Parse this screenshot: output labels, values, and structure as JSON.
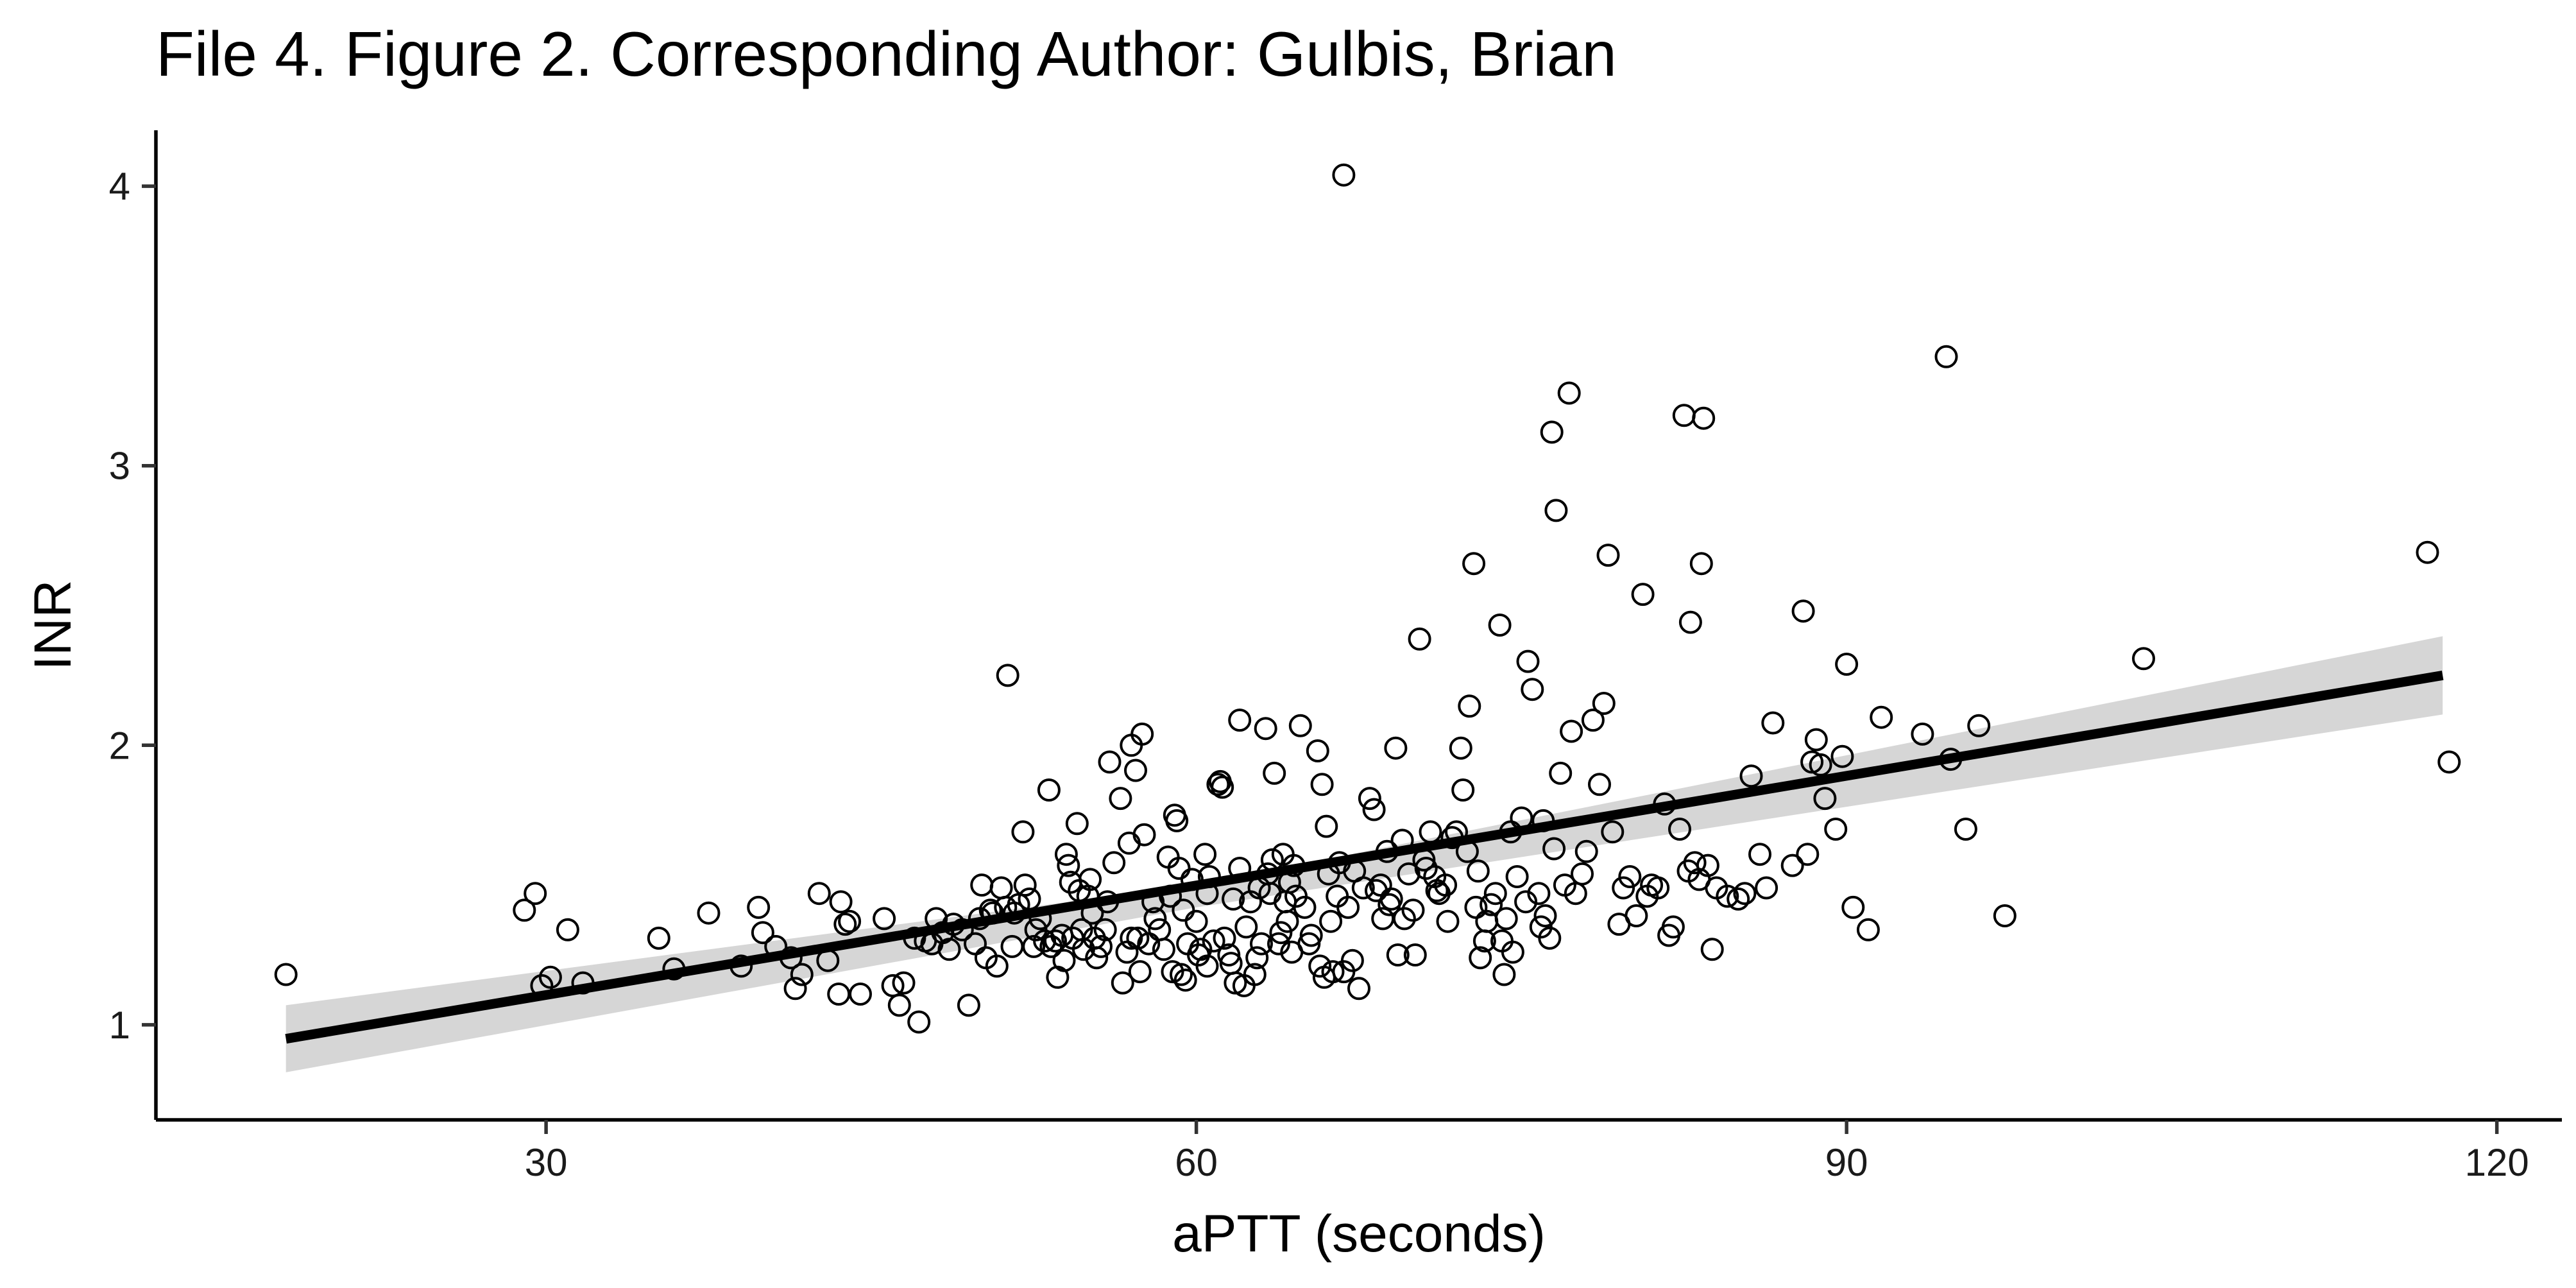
{
  "chart_data": {
    "type": "scatter",
    "title": "File 4. Figure 2. Corresponding Author: Gulbis, Brian",
    "xlabel": "aPTT (seconds)",
    "ylabel": "INR",
    "xlim": [
      12,
      123
    ],
    "ylim": [
      0.66,
      4.2
    ],
    "xticks": [
      30,
      60,
      90,
      120
    ],
    "yticks": [
      1,
      2,
      3,
      4
    ],
    "grid": false,
    "legend": "none",
    "marker": "open-circle",
    "fit": {
      "type": "linear",
      "x_range": [
        18,
        117.5
      ],
      "line": [
        [
          18,
          0.95
        ],
        [
          117.5,
          2.25
        ]
      ],
      "ci_lower": [
        [
          18,
          0.83
        ],
        [
          60,
          1.42
        ],
        [
          117.5,
          2.11
        ]
      ],
      "ci_upper": [
        [
          18,
          1.07
        ],
        [
          60,
          1.5
        ],
        [
          117.5,
          2.39
        ]
      ]
    },
    "colors": {
      "points": "#000000",
      "fit_line": "#000000",
      "ci_band": "#d6d6d6"
    },
    "points": [
      [
        18,
        1.18
      ],
      [
        29,
        1.41
      ],
      [
        29.5,
        1.47
      ],
      [
        29.8,
        1.14
      ],
      [
        30.2,
        1.17
      ],
      [
        31,
        1.34
      ],
      [
        31.7,
        1.15
      ],
      [
        35.2,
        1.31
      ],
      [
        35.9,
        1.2
      ],
      [
        37.5,
        1.4
      ],
      [
        39,
        1.21
      ],
      [
        39.8,
        1.42
      ],
      [
        40,
        1.33
      ],
      [
        40.6,
        1.28
      ],
      [
        41.3,
        1.24
      ],
      [
        41.5,
        1.13
      ],
      [
        41.8,
        1.18
      ],
      [
        42.6,
        1.47
      ],
      [
        43,
        1.23
      ],
      [
        43.5,
        1.11
      ],
      [
        43.6,
        1.44
      ],
      [
        43.8,
        1.36
      ],
      [
        44,
        1.37
      ],
      [
        44.5,
        1.11
      ],
      [
        45.6,
        1.38
      ],
      [
        46,
        1.14
      ],
      [
        46.3,
        1.07
      ],
      [
        46.5,
        1.15
      ],
      [
        47,
        1.31
      ],
      [
        47.2,
        1.01
      ],
      [
        47.5,
        1.3
      ],
      [
        47.8,
        1.29
      ],
      [
        48,
        1.38
      ],
      [
        48.3,
        1.33
      ],
      [
        48.6,
        1.27
      ],
      [
        48.8,
        1.36
      ],
      [
        49.2,
        1.34
      ],
      [
        49.5,
        1.07
      ],
      [
        49.8,
        1.29
      ],
      [
        50,
        1.38
      ],
      [
        50.1,
        1.5
      ],
      [
        50.3,
        1.24
      ],
      [
        50.6,
        1.4
      ],
      [
        50.8,
        1.21
      ],
      [
        51,
        1.49
      ],
      [
        51.2,
        1.42
      ],
      [
        51.3,
        2.25
      ],
      [
        51.5,
        1.28
      ],
      [
        51.6,
        1.4
      ],
      [
        51.8,
        1.43
      ],
      [
        52,
        1.69
      ],
      [
        52.1,
        1.5
      ],
      [
        52.3,
        1.45
      ],
      [
        52.5,
        1.28
      ],
      [
        52.8,
        1.38
      ],
      [
        53,
        1.3
      ],
      [
        53.2,
        1.84
      ],
      [
        53.3,
        1.28
      ],
      [
        53.5,
        1.3
      ],
      [
        53.6,
        1.17
      ],
      [
        53.8,
        1.32
      ],
      [
        54,
        1.61
      ],
      [
        54.1,
        1.57
      ],
      [
        54.2,
        1.51
      ],
      [
        54.3,
        1.31
      ],
      [
        54.5,
        1.72
      ],
      [
        54.6,
        1.48
      ],
      [
        54.8,
        1.27
      ],
      [
        55,
        1.46
      ],
      [
        55.1,
        1.52
      ],
      [
        55.2,
        1.4
      ],
      [
        55.4,
        1.24
      ],
      [
        55.6,
        1.28
      ],
      [
        55.8,
        1.34
      ],
      [
        56,
        1.94
      ],
      [
        56.2,
        1.58
      ],
      [
        56.5,
        1.81
      ],
      [
        56.6,
        1.15
      ],
      [
        56.8,
        1.26
      ],
      [
        57,
        2.0
      ],
      [
        57,
        1.31
      ],
      [
        57.2,
        1.91
      ],
      [
        57.3,
        1.31
      ],
      [
        57.5,
        2.04
      ],
      [
        57.6,
        1.68
      ],
      [
        57.8,
        1.29
      ],
      [
        58,
        1.44
      ],
      [
        58.1,
        1.38
      ],
      [
        58.3,
        1.34
      ],
      [
        58.5,
        1.27
      ],
      [
        58.8,
        1.46
      ],
      [
        59,
        1.75
      ],
      [
        59.1,
        1.73
      ],
      [
        59.2,
        1.56
      ],
      [
        59.3,
        1.18
      ],
      [
        59.5,
        1.16
      ],
      [
        59.6,
        1.29
      ],
      [
        59.8,
        1.52
      ],
      [
        60,
        1.37
      ],
      [
        60.1,
        1.25
      ],
      [
        60.2,
        1.27
      ],
      [
        60.4,
        1.61
      ],
      [
        60.5,
        1.47
      ],
      [
        60.6,
        1.53
      ],
      [
        60.8,
        1.3
      ],
      [
        61,
        1.86
      ],
      [
        61.2,
        1.85
      ],
      [
        61.3,
        1.31
      ],
      [
        61.5,
        1.25
      ],
      [
        61.6,
        1.22
      ],
      [
        61.8,
        1.15
      ],
      [
        62,
        2.09
      ],
      [
        62,
        1.56
      ],
      [
        62.2,
        1.14
      ],
      [
        62.3,
        1.35
      ],
      [
        62.5,
        1.44
      ],
      [
        62.7,
        1.18
      ],
      [
        62.8,
        1.24
      ],
      [
        63,
        1.29
      ],
      [
        63.2,
        2.06
      ],
      [
        63.3,
        1.54
      ],
      [
        63.4,
        1.47
      ],
      [
        63.5,
        1.59
      ],
      [
        63.6,
        1.9
      ],
      [
        63.8,
        1.29
      ],
      [
        64,
        1.61
      ],
      [
        64.1,
        1.44
      ],
      [
        64.2,
        1.37
      ],
      [
        64.4,
        1.26
      ],
      [
        64.5,
        1.57
      ],
      [
        64.6,
        1.46
      ],
      [
        64.8,
        2.07
      ],
      [
        65,
        1.42
      ],
      [
        65.2,
        1.29
      ],
      [
        65.3,
        1.32
      ],
      [
        65.6,
        1.98
      ],
      [
        65.7,
        1.21
      ],
      [
        65.8,
        1.86
      ],
      [
        66,
        1.71
      ],
      [
        66.2,
        1.37
      ],
      [
        66.3,
        1.19
      ],
      [
        66.5,
        1.46
      ],
      [
        66.6,
        1.58
      ],
      [
        66.8,
        1.19
      ],
      [
        67,
        1.42
      ],
      [
        67.2,
        1.23
      ],
      [
        67.5,
        1.13
      ],
      [
        67.7,
        1.49
      ],
      [
        68,
        1.81
      ],
      [
        68.2,
        1.77
      ],
      [
        68.3,
        1.48
      ],
      [
        68.5,
        1.5
      ],
      [
        68.6,
        1.38
      ],
      [
        68.8,
        1.62
      ],
      [
        69,
        1.45
      ],
      [
        69.2,
        1.99
      ],
      [
        69.3,
        1.25
      ],
      [
        69.6,
        1.38
      ],
      [
        69.8,
        1.54
      ],
      [
        70,
        1.41
      ],
      [
        70.1,
        1.25
      ],
      [
        70.3,
        2.38
      ],
      [
        70.5,
        1.59
      ],
      [
        70.8,
        1.69
      ],
      [
        71,
        1.53
      ],
      [
        71.2,
        1.47
      ],
      [
        71.5,
        1.5
      ],
      [
        71.8,
        1.67
      ],
      [
        72,
        1.69
      ],
      [
        72.2,
        1.99
      ],
      [
        72.3,
        1.84
      ],
      [
        72.5,
        1.62
      ],
      [
        72.6,
        2.14
      ],
      [
        72.8,
        2.65
      ],
      [
        73,
        1.55
      ],
      [
        73.1,
        1.24
      ],
      [
        73.3,
        1.3
      ],
      [
        73.6,
        1.43
      ],
      [
        73.8,
        1.47
      ],
      [
        74,
        2.43
      ],
      [
        74.2,
        1.18
      ],
      [
        74.3,
        1.38
      ],
      [
        74.5,
        1.69
      ],
      [
        74.6,
        1.26
      ],
      [
        74.8,
        1.53
      ],
      [
        75,
        1.74
      ],
      [
        75.2,
        1.44
      ],
      [
        75.3,
        2.3
      ],
      [
        75.5,
        2.2
      ],
      [
        75.8,
        1.47
      ],
      [
        76,
        1.73
      ],
      [
        76.1,
        1.39
      ],
      [
        76.3,
        1.31
      ],
      [
        76.4,
        3.12
      ],
      [
        76.5,
        1.63
      ],
      [
        76.6,
        2.84
      ],
      [
        76.8,
        1.9
      ],
      [
        77,
        1.5
      ],
      [
        77.2,
        3.26
      ],
      [
        77.3,
        2.05
      ],
      [
        77.5,
        1.47
      ],
      [
        77.8,
        1.54
      ],
      [
        78,
        1.62
      ],
      [
        78.3,
        2.09
      ],
      [
        78.6,
        1.86
      ],
      [
        78.8,
        2.15
      ],
      [
        79,
        2.68
      ],
      [
        79.2,
        1.69
      ],
      [
        79.5,
        1.36
      ],
      [
        79.7,
        1.49
      ],
      [
        80,
        1.53
      ],
      [
        80.3,
        1.39
      ],
      [
        80.6,
        2.54
      ],
      [
        80.8,
        1.46
      ],
      [
        81,
        1.5
      ],
      [
        81.3,
        1.49
      ],
      [
        81.6,
        1.79
      ],
      [
        81.8,
        1.32
      ],
      [
        82,
        1.35
      ],
      [
        82.3,
        1.7
      ],
      [
        82.5,
        3.18
      ],
      [
        82.7,
        1.55
      ],
      [
        82.8,
        2.44
      ],
      [
        83,
        1.58
      ],
      [
        83.2,
        1.52
      ],
      [
        83.3,
        2.65
      ],
      [
        83.4,
        3.17
      ],
      [
        83.6,
        1.57
      ],
      [
        83.8,
        1.27
      ],
      [
        84,
        1.49
      ],
      [
        84.5,
        1.46
      ],
      [
        85,
        1.45
      ],
      [
        85.3,
        1.47
      ],
      [
        85.6,
        1.89
      ],
      [
        86,
        1.61
      ],
      [
        86.3,
        1.49
      ],
      [
        86.6,
        2.08
      ],
      [
        87.5,
        1.57
      ],
      [
        88,
        2.48
      ],
      [
        88.2,
        1.61
      ],
      [
        88.4,
        1.94
      ],
      [
        88.6,
        2.02
      ],
      [
        88.8,
        1.93
      ],
      [
        89,
        1.81
      ],
      [
        89.5,
        1.7
      ],
      [
        89.8,
        1.96
      ],
      [
        90,
        2.29
      ],
      [
        90.3,
        1.42
      ],
      [
        91,
        1.34
      ],
      [
        91.6,
        2.1
      ],
      [
        93.5,
        2.04
      ],
      [
        94.6,
        3.39
      ],
      [
        94.8,
        1.95
      ],
      [
        95.5,
        1.7
      ],
      [
        96.1,
        2.07
      ],
      [
        97.3,
        1.39
      ],
      [
        103.7,
        2.31
      ],
      [
        116.8,
        2.69
      ],
      [
        117.8,
        1.94
      ],
      [
        66.8,
        4.04
      ],
      [
        60.5,
        1.21
      ],
      [
        61.1,
        1.87
      ],
      [
        58.9,
        1.19
      ],
      [
        56.9,
        1.65
      ],
      [
        54.7,
        1.34
      ],
      [
        52.6,
        1.34
      ],
      [
        50.5,
        1.41
      ],
      [
        55.9,
        1.44
      ],
      [
        57.4,
        1.19
      ],
      [
        59.4,
        1.41
      ],
      [
        61.7,
        1.45
      ],
      [
        63.9,
        1.33
      ],
      [
        65.9,
        1.17
      ],
      [
        68.9,
        1.43
      ],
      [
        70.6,
        1.56
      ],
      [
        71.6,
        1.37
      ],
      [
        73.4,
        1.37
      ],
      [
        72.9,
        1.42
      ],
      [
        74.1,
        1.3
      ],
      [
        75.9,
        1.35
      ],
      [
        53.9,
        1.23
      ],
      [
        55.3,
        1.31
      ],
      [
        58.7,
        1.6
      ],
      [
        62.9,
        1.49
      ],
      [
        64.3,
        1.51
      ],
      [
        66.1,
        1.54
      ],
      [
        67.3,
        1.55
      ],
      [
        69.5,
        1.66
      ],
      [
        71.1,
        1.48
      ]
    ]
  }
}
